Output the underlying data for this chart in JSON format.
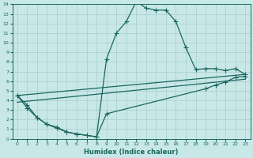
{
  "xlabel": "Humidex (Indice chaleur)",
  "xlim": [
    -0.5,
    23.5
  ],
  "ylim": [
    0,
    14
  ],
  "xticks": [
    0,
    1,
    2,
    3,
    4,
    5,
    6,
    7,
    8,
    9,
    10,
    11,
    12,
    13,
    14,
    15,
    16,
    17,
    18,
    19,
    20,
    21,
    22,
    23
  ],
  "yticks": [
    0,
    1,
    2,
    3,
    4,
    5,
    6,
    7,
    8,
    9,
    10,
    11,
    12,
    13,
    14
  ],
  "bg_color": "#c8e8e8",
  "grid_color": "#aacccc",
  "line_color": "#1a6660",
  "line1_x": [
    0,
    1,
    2,
    3,
    4,
    5,
    6,
    7,
    8,
    9,
    10,
    11,
    12,
    13,
    14,
    15,
    16,
    17,
    18,
    19,
    20,
    21,
    22,
    23
  ],
  "line1_y": [
    4.5,
    3.5,
    2.2,
    1.5,
    1.1,
    0.7,
    0.5,
    0.35,
    0.2,
    8.3,
    11.0,
    12.2,
    14.3,
    13.6,
    13.4,
    13.4,
    12.2,
    9.5,
    7.2,
    7.3,
    7.3,
    7.1,
    7.3,
    6.7
  ],
  "line2_x": [
    0,
    1,
    2,
    3,
    4,
    5,
    6,
    7,
    8,
    9,
    19,
    20,
    21,
    22,
    23
  ],
  "line2_y": [
    4.5,
    3.2,
    2.2,
    1.5,
    1.2,
    0.7,
    0.5,
    0.35,
    0.2,
    2.6,
    5.2,
    5.6,
    5.9,
    6.4,
    6.5
  ],
  "line3_x": [
    0,
    23
  ],
  "line3_y": [
    4.5,
    6.7
  ],
  "line4_x": [
    0,
    23
  ],
  "line4_y": [
    3.8,
    6.2
  ]
}
